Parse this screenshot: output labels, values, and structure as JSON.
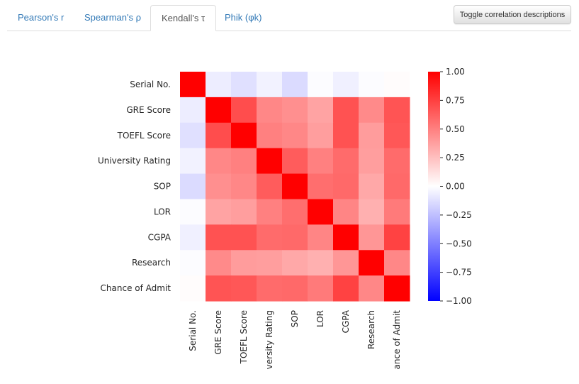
{
  "tabs": [
    {
      "label": "Pearson's r"
    },
    {
      "label": "Spearman's ρ"
    },
    {
      "label": "Kendall's τ"
    },
    {
      "label": "Phik (φk)"
    }
  ],
  "active_tab": 2,
  "toggle_button_label": "Toggle correlation descriptions",
  "colors": {
    "cmap_low": "#0000ff",
    "cmap_mid": "#ffffff",
    "cmap_high": "#ff0000",
    "tab_link": "#337ab7"
  },
  "chart_data": {
    "type": "heatmap",
    "title": "",
    "row_labels": [
      "Serial No.",
      "GRE Score",
      "TOEFL Score",
      "University Rating",
      "SOP",
      "LOR ",
      "CGPA",
      "Research",
      "Chance of Admit "
    ],
    "col_labels": [
      "Serial No.",
      "GRE Score",
      "TOEFL Score",
      "University Rating",
      "SOP",
      "LOR ",
      "CGPA",
      "Research",
      "Chance of Admit "
    ],
    "values": [
      [
        1.0,
        -0.07,
        -0.12,
        -0.05,
        -0.14,
        -0.01,
        -0.06,
        -0.01,
        0.01
      ],
      [
        -0.07,
        1.0,
        0.7,
        0.47,
        0.44,
        0.36,
        0.68,
        0.46,
        0.67
      ],
      [
        -0.12,
        0.7,
        1.0,
        0.5,
        0.47,
        0.38,
        0.68,
        0.39,
        0.66
      ],
      [
        -0.05,
        0.47,
        0.5,
        1.0,
        0.64,
        0.5,
        0.58,
        0.38,
        0.58
      ],
      [
        -0.14,
        0.44,
        0.47,
        0.64,
        1.0,
        0.57,
        0.59,
        0.34,
        0.59
      ],
      [
        -0.01,
        0.36,
        0.38,
        0.5,
        0.57,
        1.0,
        0.48,
        0.31,
        0.52
      ],
      [
        -0.06,
        0.68,
        0.68,
        0.58,
        0.59,
        0.48,
        1.0,
        0.41,
        0.74
      ],
      [
        -0.01,
        0.46,
        0.39,
        0.38,
        0.34,
        0.31,
        0.41,
        1.0,
        0.47
      ],
      [
        0.01,
        0.67,
        0.66,
        0.58,
        0.59,
        0.52,
        0.74,
        0.47,
        1.0
      ]
    ],
    "col_display_labels": [
      "Serial No.",
      "GRE Score",
      "TOEFL Score",
      "versity Rating",
      "SOP",
      "LOR",
      "CGPA",
      "Research",
      "ance of Admit"
    ],
    "vmin": -1.0,
    "vmax": 1.0,
    "colorbar_ticks": [
      1.0,
      0.75,
      0.5,
      0.25,
      0.0,
      -0.25,
      -0.5,
      -0.75,
      -1.0
    ],
    "colorbar_tick_labels": [
      "1.00",
      "0.75",
      "0.50",
      "0.25",
      "0.00",
      "−0.25",
      "−0.50",
      "−0.75",
      "−1.00"
    ],
    "cmap": "bwr"
  }
}
